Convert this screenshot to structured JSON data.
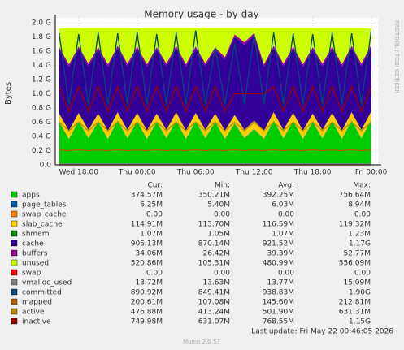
{
  "chart_data": {
    "type": "stacked-area",
    "title": "Memory usage - by day",
    "y_label": "Bytes",
    "side_text": "RRDTOOL / TOBI OETIKER",
    "x": [
      16,
      17,
      18,
      19,
      20,
      21,
      22,
      23,
      24,
      25,
      26,
      27,
      28,
      29,
      30,
      31,
      32,
      33,
      34,
      35,
      36,
      37,
      38,
      39,
      40,
      41,
      42,
      43,
      44,
      45,
      46,
      47,
      48
    ],
    "xlim": [
      15.6,
      48.7
    ],
    "xticks": [
      {
        "value": 18,
        "label": "Wed 18:00"
      },
      {
        "value": 24,
        "label": "Thu 00:00"
      },
      {
        "value": 30,
        "label": "Thu 06:00"
      },
      {
        "value": 36,
        "label": "Thu 12:00"
      },
      {
        "value": 42,
        "label": "Thu 18:00"
      },
      {
        "value": 48,
        "label": "Fri 00:00"
      }
    ],
    "ylim": [
      0,
      2.0
    ],
    "yticks": [
      {
        "value": 0,
        "label": "0.0"
      },
      {
        "value": 0.2,
        "label": "0.2 G"
      },
      {
        "value": 0.4,
        "label": "0.4 G"
      },
      {
        "value": 0.6,
        "label": "0.6 G"
      },
      {
        "value": 0.8,
        "label": "0.8 G"
      },
      {
        "value": 1.0,
        "label": "1.0 G"
      },
      {
        "value": 1.2,
        "label": "1.2 G"
      },
      {
        "value": 1.4,
        "label": "1.4 G"
      },
      {
        "value": 1.6,
        "label": "1.6 G"
      },
      {
        "value": 1.8,
        "label": "1.8 G"
      },
      {
        "value": 2.0,
        "label": "2.0 G"
      }
    ],
    "grid": true,
    "legend_headers": [
      "Cur:",
      "Min:",
      "Avg:",
      "Max:"
    ],
    "series": [
      {
        "name": "apps",
        "kind": "area",
        "color": "#00CC00",
        "stats": [
          "374.57M",
          "350.21M",
          "392.25M",
          "756.64M"
        ],
        "values": [
          0.6,
          0.36,
          0.61,
          0.37,
          0.6,
          0.36,
          0.62,
          0.37,
          0.61,
          0.36,
          0.6,
          0.37,
          0.62,
          0.36,
          0.61,
          0.37,
          0.6,
          0.36,
          0.58,
          0.37,
          0.5,
          0.36,
          0.62,
          0.37,
          0.61,
          0.36,
          0.6,
          0.37,
          0.61,
          0.36,
          0.62,
          0.37,
          0.63
        ]
      },
      {
        "name": "page_tables",
        "kind": "area",
        "color": "#0066B3",
        "stats": [
          "6.25M",
          "5.40M",
          "6.03M",
          "8.94M"
        ],
        "values": [
          0.006,
          0.006,
          0.006,
          0.006,
          0.006,
          0.006,
          0.006,
          0.006,
          0.006,
          0.006,
          0.006,
          0.006,
          0.006,
          0.006,
          0.006,
          0.006,
          0.006,
          0.006,
          0.006,
          0.006,
          0.006,
          0.006,
          0.006,
          0.006,
          0.006,
          0.006,
          0.006,
          0.006,
          0.006,
          0.006,
          0.006,
          0.006,
          0.006
        ]
      },
      {
        "name": "swap_cache",
        "kind": "area",
        "color": "#FF8000",
        "stats": [
          "0.00",
          "0.00",
          "0.00",
          "0.00"
        ],
        "values": [
          0,
          0,
          0,
          0,
          0,
          0,
          0,
          0,
          0,
          0,
          0,
          0,
          0,
          0,
          0,
          0,
          0,
          0,
          0,
          0,
          0,
          0,
          0,
          0,
          0,
          0,
          0,
          0,
          0,
          0,
          0,
          0,
          0
        ]
      },
      {
        "name": "slab_cache",
        "kind": "area",
        "color": "#FFCC00",
        "stats": [
          "114.91M",
          "113.70M",
          "116.59M",
          "119.32M"
        ],
        "values": [
          0.115,
          0.115,
          0.115,
          0.115,
          0.115,
          0.115,
          0.115,
          0.115,
          0.115,
          0.115,
          0.115,
          0.115,
          0.115,
          0.115,
          0.115,
          0.115,
          0.115,
          0.115,
          0.115,
          0.115,
          0.115,
          0.115,
          0.115,
          0.115,
          0.115,
          0.115,
          0.115,
          0.115,
          0.115,
          0.115,
          0.115,
          0.115,
          0.115
        ]
      },
      {
        "name": "shmem",
        "kind": "area",
        "color": "#008F00",
        "stats": [
          "1.07M",
          "1.05M",
          "1.07M",
          "1.23M"
        ],
        "values": [
          0.001,
          0.001,
          0.001,
          0.001,
          0.001,
          0.001,
          0.001,
          0.001,
          0.001,
          0.001,
          0.001,
          0.001,
          0.001,
          0.001,
          0.001,
          0.001,
          0.001,
          0.001,
          0.001,
          0.001,
          0.001,
          0.001,
          0.001,
          0.001,
          0.001,
          0.001,
          0.001,
          0.001,
          0.001,
          0.001,
          0.001,
          0.001,
          0.001
        ]
      },
      {
        "name": "cache",
        "kind": "area",
        "color": "#330099",
        "stats": [
          "906.13M",
          "870.14M",
          "921.52M",
          "1.17G"
        ],
        "values": [
          0.9,
          0.9,
          0.9,
          0.9,
          0.9,
          0.9,
          0.9,
          0.9,
          0.9,
          0.9,
          0.9,
          0.9,
          0.9,
          0.9,
          0.9,
          0.9,
          0.9,
          1.0,
          1.1,
          1.2,
          1.2,
          0.9,
          0.9,
          0.9,
          0.9,
          0.9,
          0.9,
          0.9,
          0.9,
          0.9,
          0.9,
          0.9,
          0.9
        ]
      },
      {
        "name": "buffers",
        "kind": "area",
        "color": "#990099",
        "stats": [
          "34.06M",
          "26.42M",
          "39.39M",
          "52.77M"
        ],
        "values": [
          0.034,
          0.034,
          0.034,
          0.034,
          0.034,
          0.034,
          0.034,
          0.034,
          0.034,
          0.034,
          0.034,
          0.034,
          0.034,
          0.034,
          0.034,
          0.034,
          0.034,
          0.034,
          0.034,
          0.034,
          0.034,
          0.034,
          0.034,
          0.034,
          0.034,
          0.034,
          0.034,
          0.034,
          0.034,
          0.034,
          0.034,
          0.034,
          0.034
        ]
      },
      {
        "name": "unused",
        "kind": "area",
        "color": "#CCFF00",
        "stats": [
          "520.86M",
          "105.31M",
          "480.99M",
          "556.09M"
        ],
        "values": [
          0.264,
          0.504,
          0.254,
          0.494,
          0.264,
          0.504,
          0.244,
          0.494,
          0.254,
          0.504,
          0.264,
          0.494,
          0.244,
          0.504,
          0.254,
          0.494,
          0.264,
          0.404,
          0.084,
          0.194,
          0.064,
          0.504,
          0.244,
          0.494,
          0.254,
          0.504,
          0.264,
          0.494,
          0.254,
          0.504,
          0.244,
          0.494,
          0.234
        ]
      },
      {
        "name": "swap",
        "kind": "line",
        "color": "#FF0000",
        "stats": [
          "0.00",
          "0.00",
          "0.00",
          "0.00"
        ],
        "values": [
          0,
          0,
          0,
          0,
          0,
          0,
          0,
          0,
          0,
          0,
          0,
          0,
          0,
          0,
          0,
          0,
          0,
          0,
          0,
          0,
          0,
          0,
          0,
          0,
          0,
          0,
          0,
          0,
          0,
          0,
          0,
          0,
          0
        ]
      },
      {
        "name": "vmalloc_used",
        "kind": "line",
        "color": "#808080",
        "stats": [
          "13.72M",
          "13.63M",
          "13.77M",
          "15.09M"
        ],
        "values": [
          0.014,
          0.014,
          0.014,
          0.014,
          0.014,
          0.014,
          0.014,
          0.014,
          0.014,
          0.014,
          0.014,
          0.014,
          0.014,
          0.014,
          0.014,
          0.014,
          0.014,
          0.014,
          0.014,
          0.014,
          0.014,
          0.014,
          0.014,
          0.014,
          0.014,
          0.014,
          0.014,
          0.014,
          0.014,
          0.014,
          0.014,
          0.014,
          0.014
        ]
      },
      {
        "name": "committed",
        "kind": "line",
        "color": "#00487D",
        "stats": [
          "890.92M",
          "849.41M",
          "938.83M",
          "1.90G"
        ],
        "values": [
          1.85,
          0.85,
          1.84,
          0.85,
          1.86,
          0.85,
          1.85,
          0.85,
          1.87,
          0.85,
          1.84,
          0.85,
          1.86,
          0.85,
          1.89,
          0.85,
          1.65,
          0.85,
          1.7,
          0.85,
          1.84,
          0.85,
          1.86,
          0.85,
          1.85,
          0.85,
          1.84,
          0.85,
          1.86,
          0.85,
          1.85,
          0.85,
          1.88
        ]
      },
      {
        "name": "mapped",
        "kind": "line",
        "color": "#B35A00",
        "stats": [
          "200.61M",
          "107.08M",
          "145.60M",
          "212.81M"
        ],
        "values": [
          0.21,
          0.2,
          0.21,
          0.2,
          0.21,
          0.2,
          0.21,
          0.2,
          0.21,
          0.2,
          0.21,
          0.2,
          0.21,
          0.2,
          0.21,
          0.2,
          0.21,
          0.2,
          0.21,
          0.2,
          0.21,
          0.2,
          0.21,
          0.2,
          0.21,
          0.2,
          0.21,
          0.2,
          0.21,
          0.2,
          0.21,
          0.2,
          0.21
        ]
      },
      {
        "name": "active",
        "kind": "line",
        "color": "#B38F00",
        "stats": [
          "476.88M",
          "413.24M",
          "501.90M",
          "631.31M"
        ],
        "values": [
          0.6,
          0.48,
          0.6,
          0.48,
          0.6,
          0.48,
          0.6,
          0.48,
          0.6,
          0.48,
          0.6,
          0.48,
          0.6,
          0.48,
          0.6,
          0.48,
          0.6,
          0.48,
          0.6,
          0.48,
          0.6,
          0.48,
          0.6,
          0.48,
          0.6,
          0.48,
          0.6,
          0.48,
          0.6,
          0.48,
          0.6,
          0.48,
          0.6
        ]
      },
      {
        "name": "inactive",
        "kind": "line",
        "color": "#990000",
        "stats": [
          "749.98M",
          "631.07M",
          "768.55M",
          "1.15G"
        ],
        "values": [
          1.1,
          0.75,
          1.1,
          0.75,
          1.1,
          0.75,
          1.1,
          0.75,
          1.1,
          0.75,
          1.1,
          0.75,
          1.1,
          0.75,
          1.1,
          0.75,
          1.1,
          0.75,
          1.0,
          1.0,
          1.0,
          1.0,
          1.1,
          0.75,
          1.1,
          0.75,
          1.1,
          0.75,
          1.1,
          0.75,
          1.1,
          0.75,
          1.1
        ]
      }
    ],
    "last_update": "Last update: Fri May 22 00:46:05 2026",
    "footer": "Munin 2.0.57"
  }
}
